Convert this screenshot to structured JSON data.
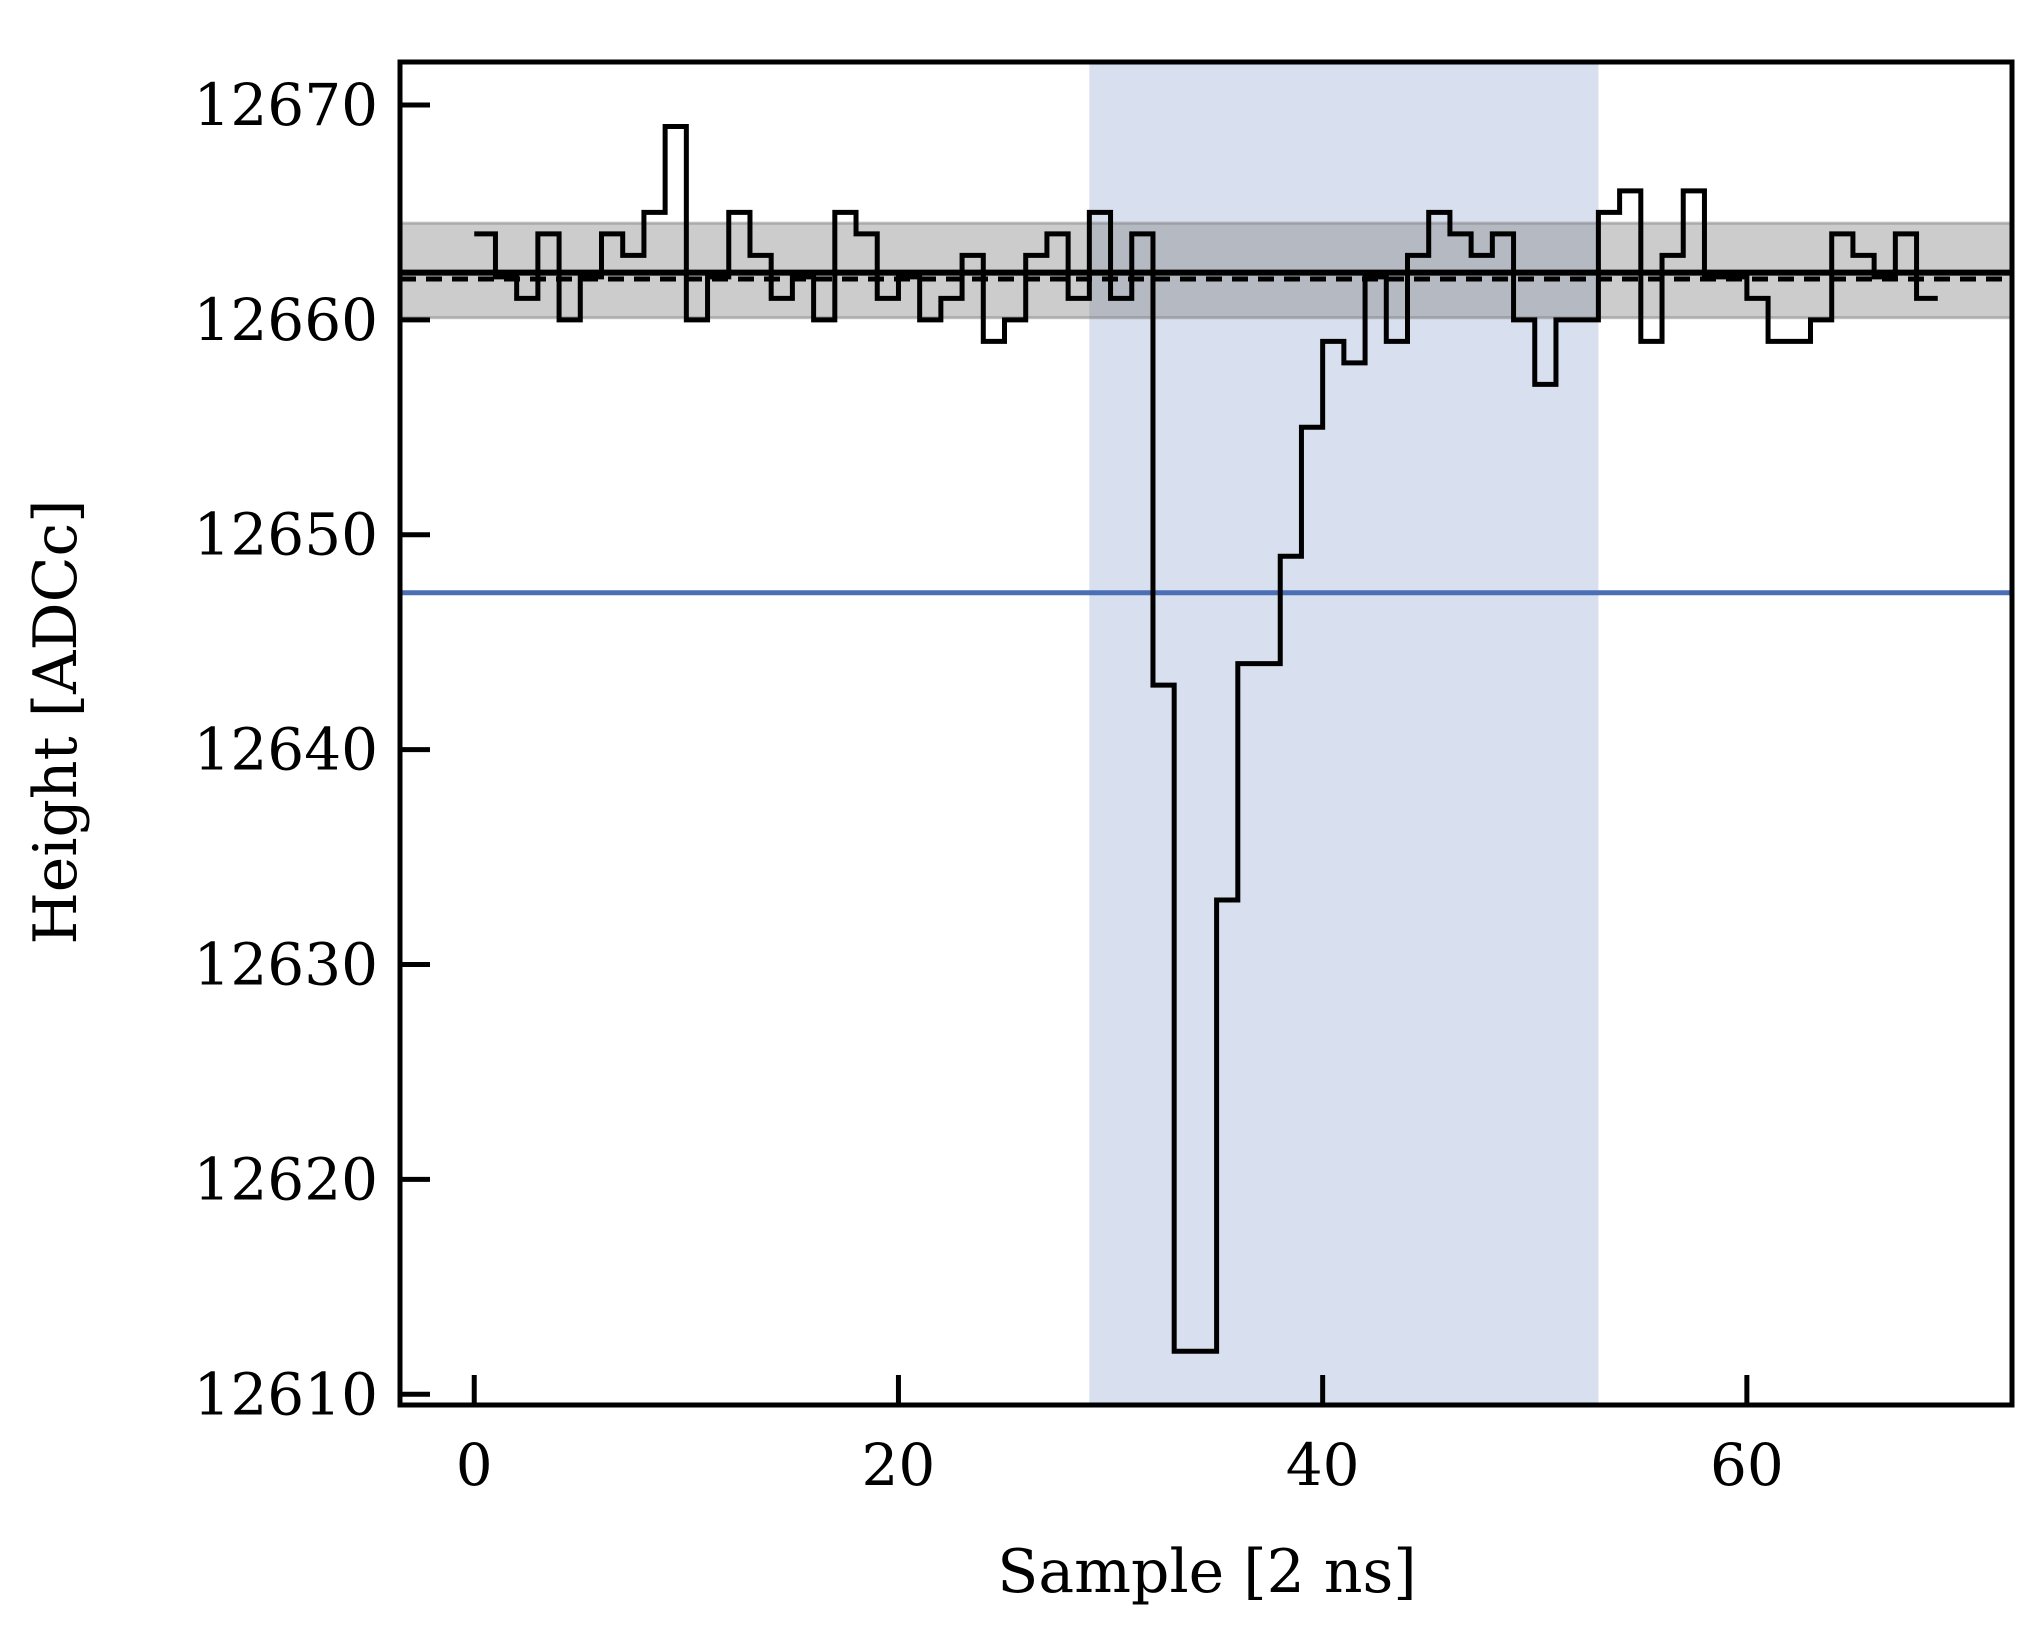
{
  "chart_data": {
    "type": "line",
    "xlabel": "Sample [2 ns]",
    "ylabel": "Height [ADCc]",
    "xlim": [
      -3.5,
      72.5
    ],
    "ylim": [
      12609.5,
      12672
    ],
    "x_ticks": [
      0,
      20,
      40,
      60
    ],
    "y_ticks": [
      12610,
      12620,
      12630,
      12640,
      12650,
      12660,
      12670
    ],
    "x_tick_labels": [
      "0",
      "20",
      "40",
      "60"
    ],
    "y_tick_labels": [
      "12610",
      "12620",
      "12630",
      "12640",
      "12650",
      "12660",
      "12670"
    ],
    "grid": false,
    "waveform": {
      "style": "step",
      "x_start": 0,
      "values": [
        12664,
        12662,
        12661,
        12664,
        12660,
        12662,
        12664,
        12663,
        12665,
        12669,
        12660,
        12662,
        12665,
        12663,
        12661,
        12662,
        12660,
        12665,
        12664,
        12661,
        12662,
        12660,
        12661,
        12663,
        12659,
        12660,
        12663,
        12664,
        12661,
        12665,
        12661,
        12664,
        12643,
        12612,
        12612,
        12633,
        12644,
        12644,
        12649,
        12655,
        12659,
        12658,
        12662,
        12659,
        12663,
        12665,
        12664,
        12663,
        12664,
        12660,
        12657,
        12660,
        12660,
        12665,
        12666,
        12659,
        12663,
        12666,
        12662,
        12662,
        12661,
        12659,
        12659,
        12660,
        12664,
        12663,
        12662,
        12664,
        12661
      ],
      "color": "#000000"
    },
    "baseline": {
      "value": 12662.2,
      "color": "#000000"
    },
    "baseline_dashed": {
      "value": 12661.9,
      "color": "#000000"
    },
    "baseline_band": {
      "range": [
        12660.1,
        12664.5
      ],
      "color": "#808080"
    },
    "threshold": {
      "value": 12647.3,
      "color": "#4a6fb5"
    },
    "integration_window": {
      "range": [
        29,
        53
      ],
      "color": "#d8dfee"
    }
  }
}
